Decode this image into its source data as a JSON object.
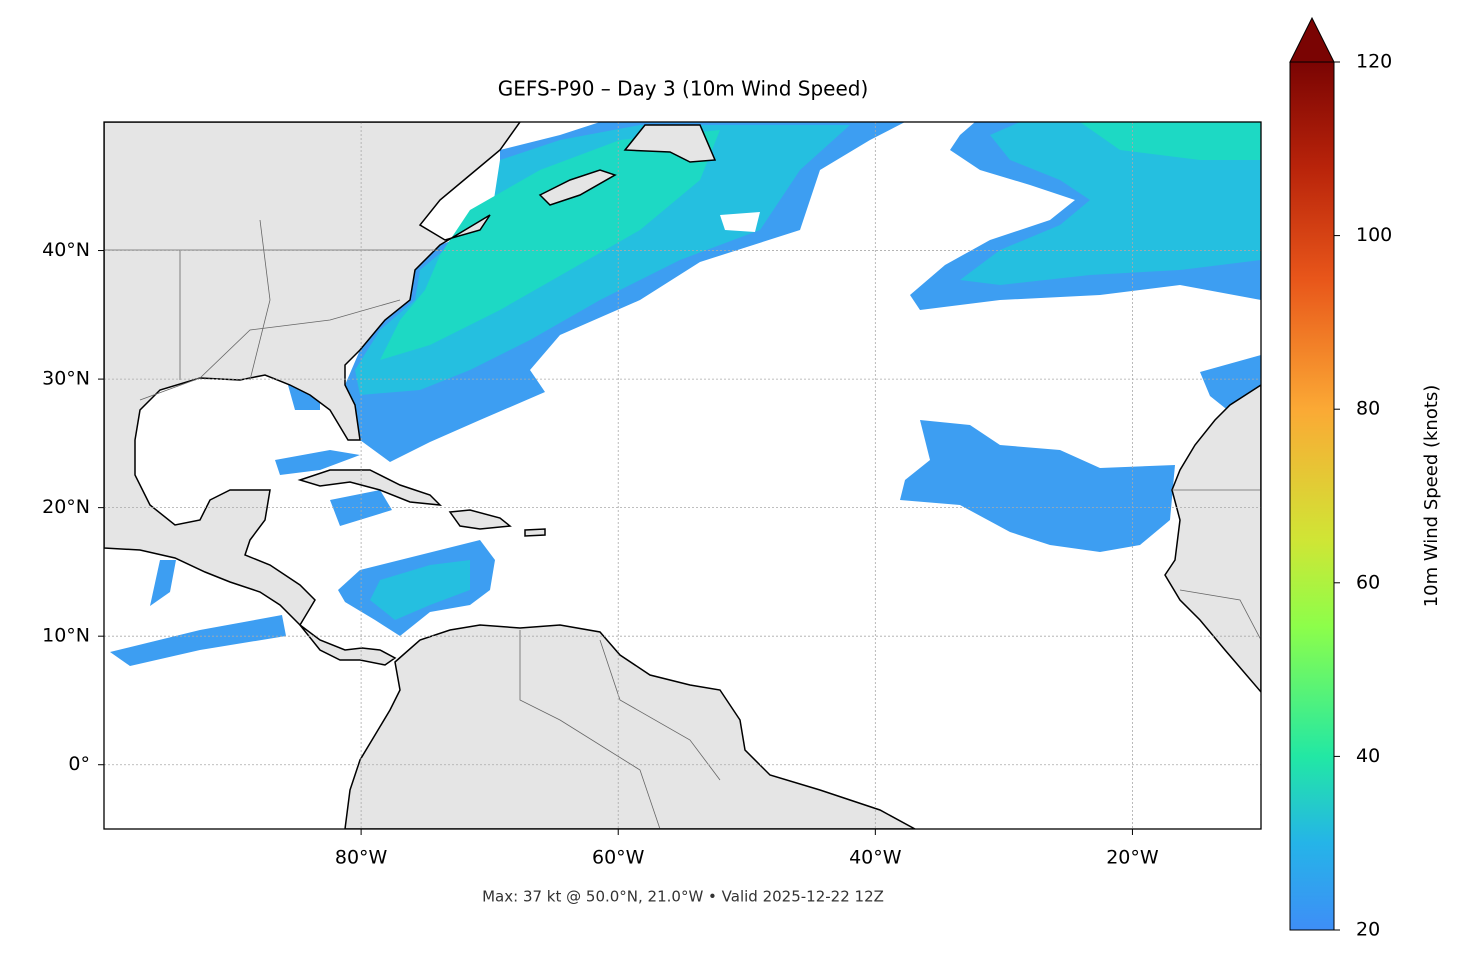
{
  "chart_data": {
    "type": "map",
    "title": "GEFS-P90 – Day 3 (10m Wind Speed)",
    "footer": "Max: 37 kt @ 50.0°N, 21.0°W • Valid 2025-12-22 12Z",
    "xlim": [
      -100,
      -10
    ],
    "ylim": [
      -5,
      50
    ],
    "xticks": [
      {
        "value": -80,
        "label": "80°W"
      },
      {
        "value": -60,
        "label": "60°W"
      },
      {
        "value": -40,
        "label": "40°W"
      },
      {
        "value": -20,
        "label": "20°W"
      }
    ],
    "yticks": [
      {
        "value": 0,
        "label": "0°"
      },
      {
        "value": 10,
        "label": "10°N"
      },
      {
        "value": 20,
        "label": "20°N"
      },
      {
        "value": 30,
        "label": "30°N"
      },
      {
        "value": 40,
        "label": "40°N"
      }
    ],
    "grid": true,
    "colorbar": {
      "label": "10m Wind Speed (knots)",
      "lim": [
        20,
        120
      ],
      "ticks": [
        20,
        40,
        60,
        80,
        100,
        120
      ],
      "extend": "max"
    }
  }
}
